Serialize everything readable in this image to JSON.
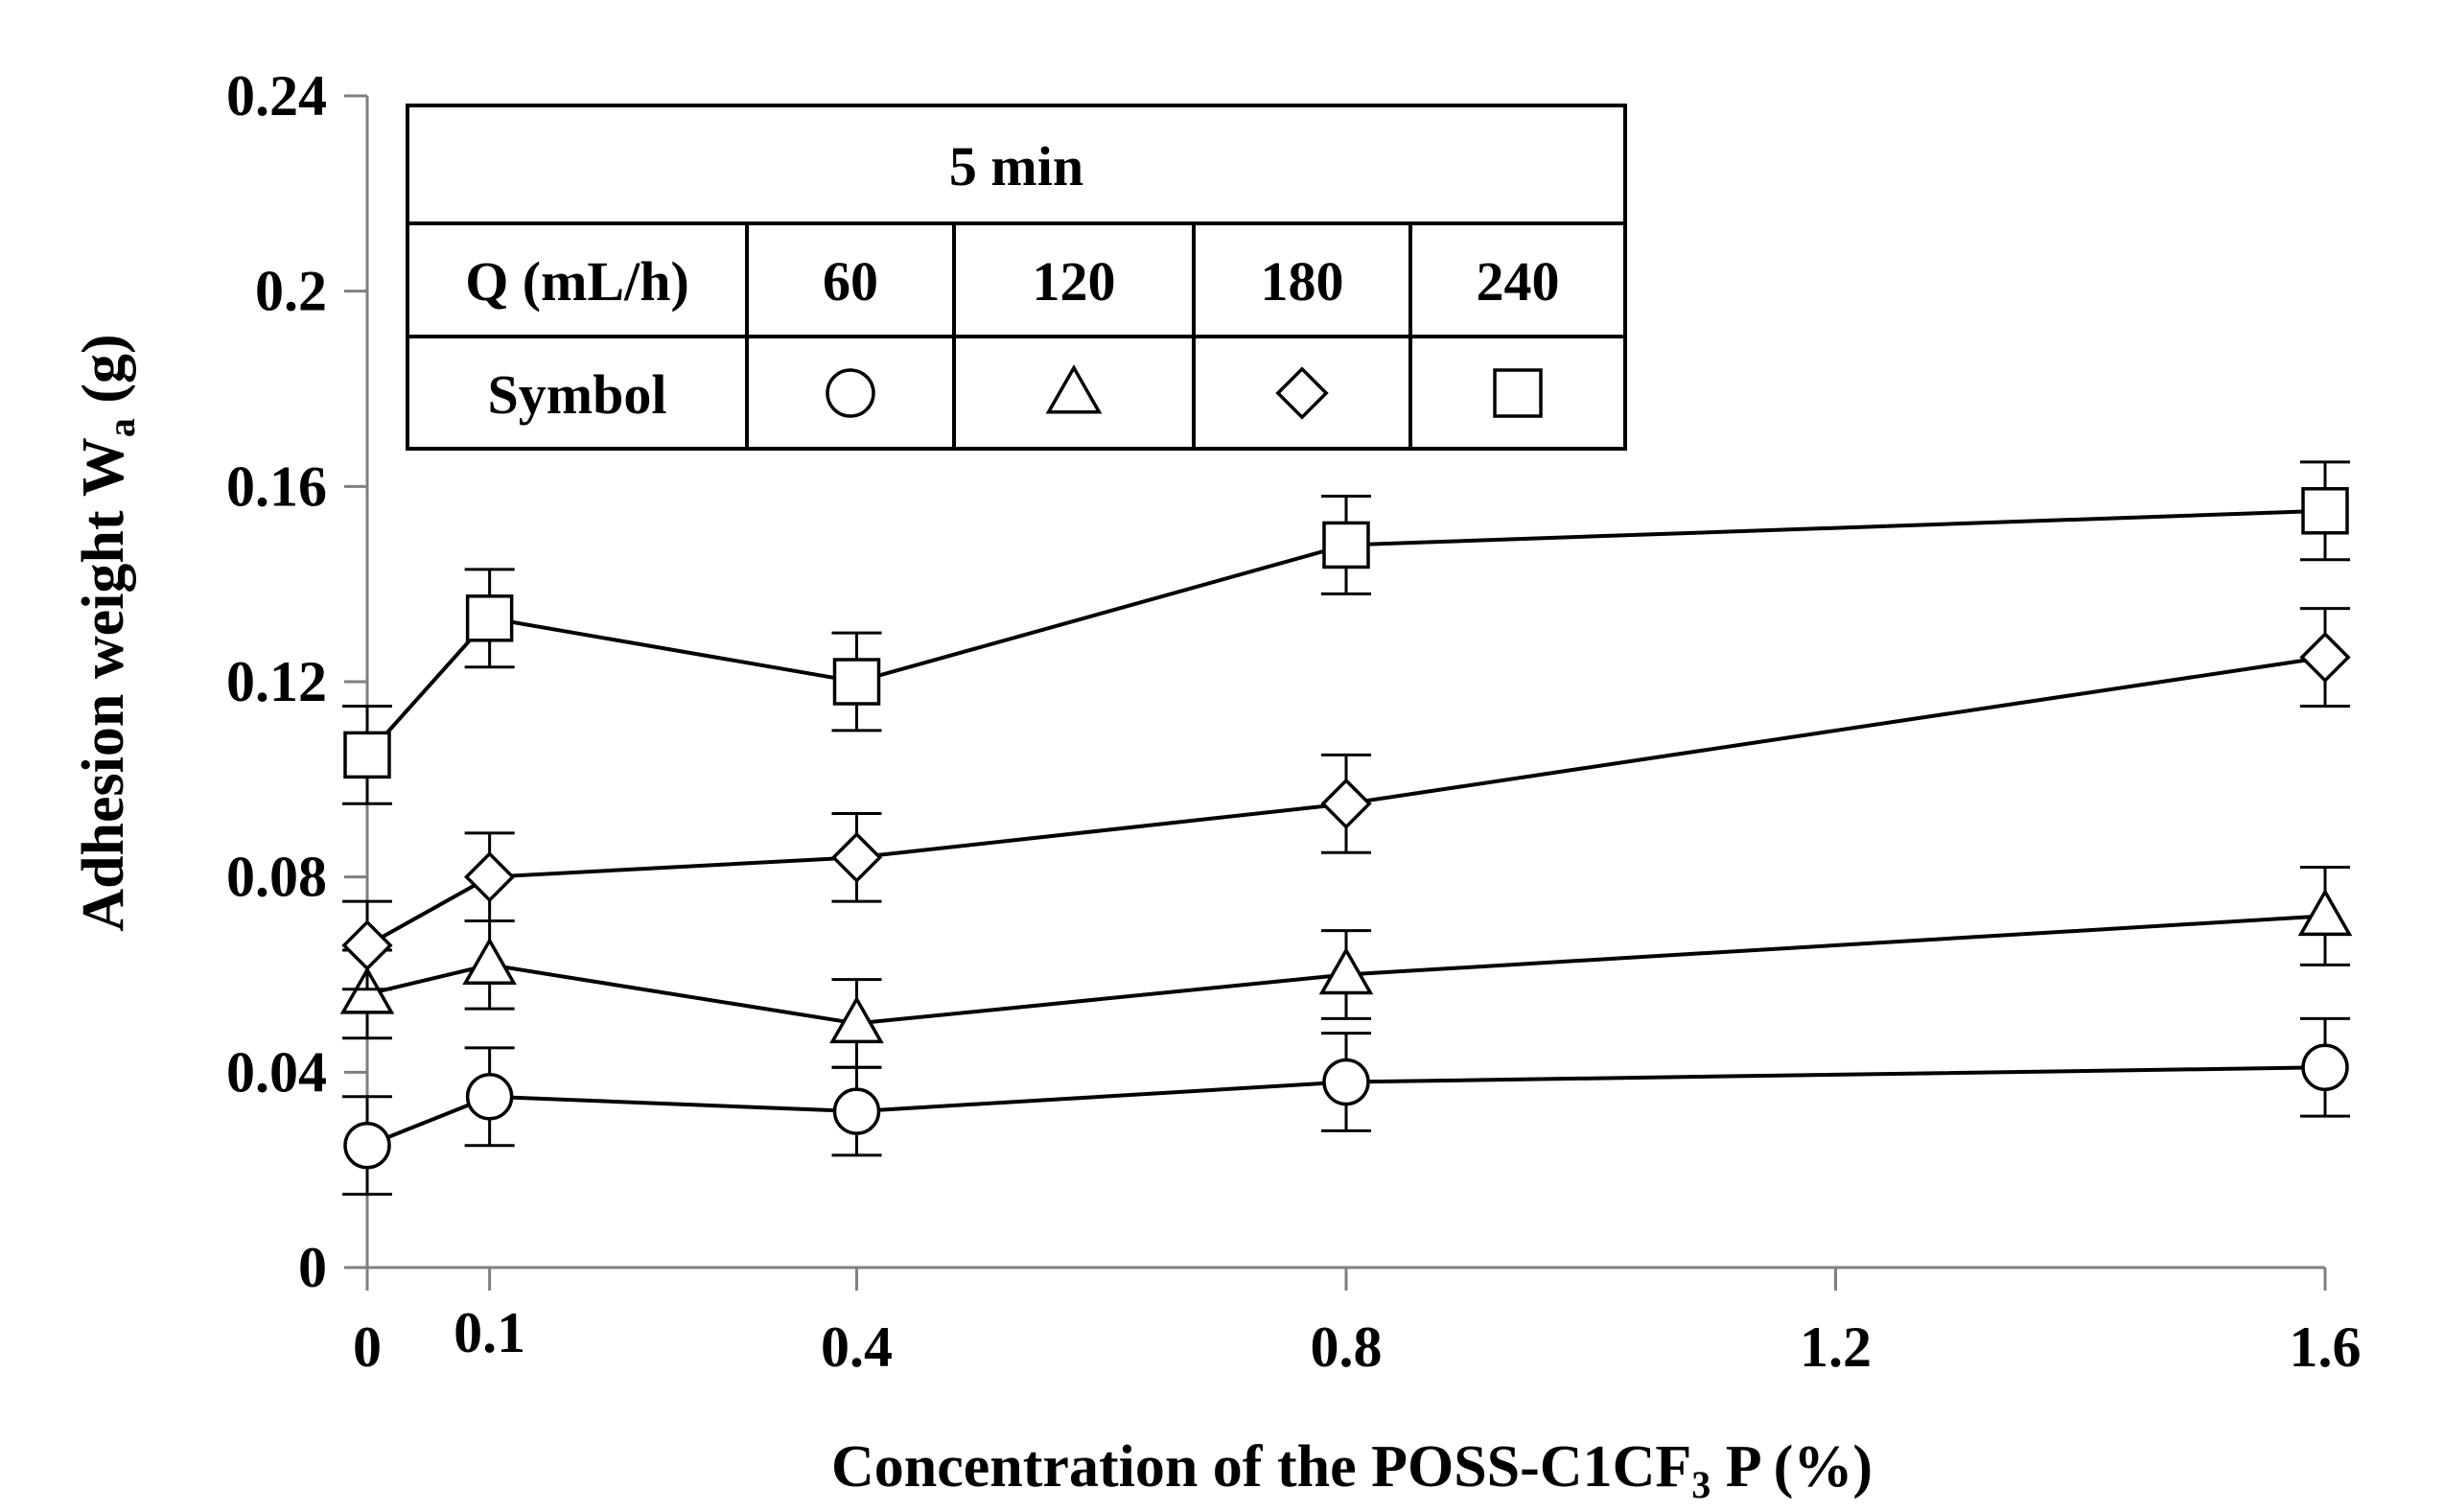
{
  "chart_data": {
    "type": "line",
    "title": "",
    "xlabel": "Concentration of the POSS-C1CF",
    "xlabel_sub": "3",
    "xlabel_suffix": "  P (%)",
    "ylabel": "Adhesion weight   W",
    "ylabel_sub": "a",
    "ylabel_suffix": " (g)",
    "xlim": [
      0,
      1.6
    ],
    "ylim": [
      0,
      0.24
    ],
    "xticks": [
      0,
      0.1,
      0.4,
      0.8,
      1.2,
      1.6
    ],
    "xtick_labels": [
      "0",
      "0.1",
      "0.4",
      "0.8",
      "1.2",
      "1.6"
    ],
    "yticks": [
      0,
      0.04,
      0.08,
      0.12,
      0.16,
      0.2,
      0.24
    ],
    "ytick_labels": [
      "0",
      "0.04",
      "0.08",
      "0.12",
      "0.16",
      "0.2",
      "0.24"
    ],
    "x": [
      0,
      0.1,
      0.4,
      0.8,
      1.6
    ],
    "series": [
      {
        "name": "60",
        "symbol": "circle",
        "values": [
          0.025,
          0.035,
          0.032,
          0.038,
          0.041
        ],
        "errors": [
          0.01,
          0.01,
          0.009,
          0.01,
          0.01
        ]
      },
      {
        "name": "120",
        "symbol": "triangle",
        "values": [
          0.056,
          0.062,
          0.05,
          0.06,
          0.072
        ],
        "errors": [
          0.009,
          0.009,
          0.009,
          0.009,
          0.01
        ]
      },
      {
        "name": "180",
        "symbol": "diamond",
        "values": [
          0.066,
          0.08,
          0.084,
          0.095,
          0.125
        ],
        "errors": [
          0.009,
          0.009,
          0.009,
          0.01,
          0.01
        ]
      },
      {
        "name": "240",
        "symbol": "square",
        "values": [
          0.105,
          0.133,
          0.12,
          0.148,
          0.155
        ],
        "errors": [
          0.01,
          0.01,
          0.01,
          0.01,
          0.01
        ]
      }
    ]
  },
  "legend": {
    "header": "5 min",
    "row1_label": "Q (mL/h)",
    "row2_label": "Symbol",
    "q_values": [
      "60",
      "120",
      "180",
      "240"
    ]
  },
  "colors": {
    "ink": "#000000",
    "axis": "#7f7f7f",
    "background": "#ffffff"
  }
}
